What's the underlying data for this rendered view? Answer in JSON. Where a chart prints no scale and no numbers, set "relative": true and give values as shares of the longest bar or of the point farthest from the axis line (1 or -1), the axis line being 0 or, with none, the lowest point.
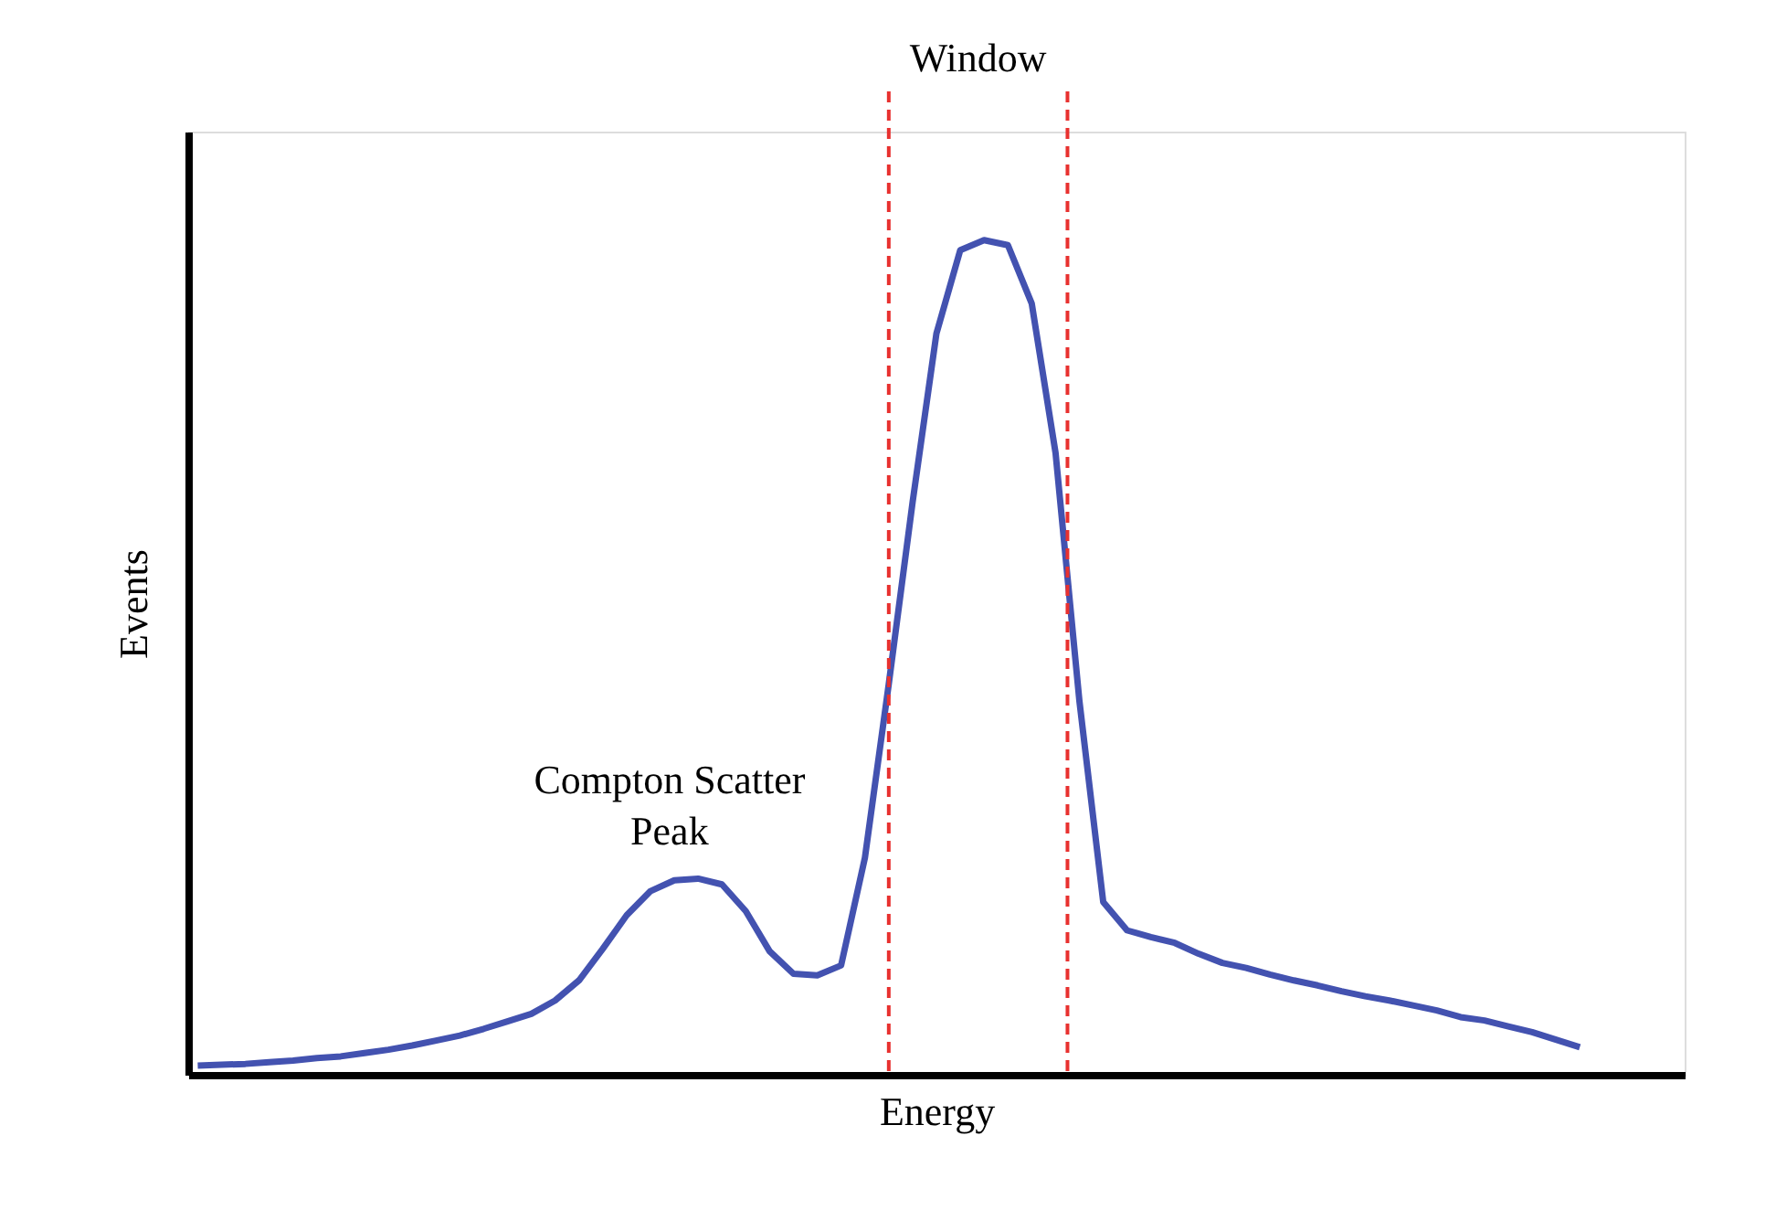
{
  "chart_data": {
    "type": "line",
    "relative": true,
    "xlabel": "Energy",
    "ylabel": "Events",
    "marker": "none",
    "line_style": "solid",
    "categories": [
      null,
      null,
      null,
      null,
      null,
      null,
      null,
      null,
      null,
      null,
      null,
      null,
      null,
      null,
      null,
      null,
      null,
      null,
      null,
      null,
      null,
      null,
      null,
      null,
      null,
      null,
      null,
      null,
      null,
      null,
      null,
      null,
      null,
      null,
      null,
      null,
      null,
      null,
      null,
      null,
      null,
      null,
      null,
      null,
      null,
      null,
      null,
      null,
      null,
      null,
      null,
      null,
      null,
      null,
      null,
      null,
      null,
      null,
      null
    ],
    "series": [
      {
        "color": "#4352b0",
        "values": [
          0.011,
          0.012,
          0.013,
          0.015,
          0.017,
          0.02,
          0.022,
          0.026,
          0.03,
          0.035,
          0.041,
          0.047,
          0.055,
          0.064,
          0.073,
          0.089,
          0.113,
          0.151,
          0.191,
          0.22,
          0.233,
          0.235,
          0.228,
          0.196,
          0.148,
          0.121,
          0.119,
          0.131,
          0.26,
          0.468,
          0.686,
          0.888,
          0.988,
          1.0,
          0.994,
          0.924,
          0.745,
          0.448,
          0.207,
          0.173,
          0.165,
          0.158,
          0.145,
          0.134,
          0.128,
          0.12,
          0.113,
          0.107,
          0.1,
          0.094,
          0.089,
          0.083,
          0.077,
          0.069,
          0.065,
          0.058,
          0.051,
          0.042,
          0.033
        ]
      }
    ],
    "annotations": [
      "Window",
      "Compton Scatter\nPeak"
    ]
  }
}
